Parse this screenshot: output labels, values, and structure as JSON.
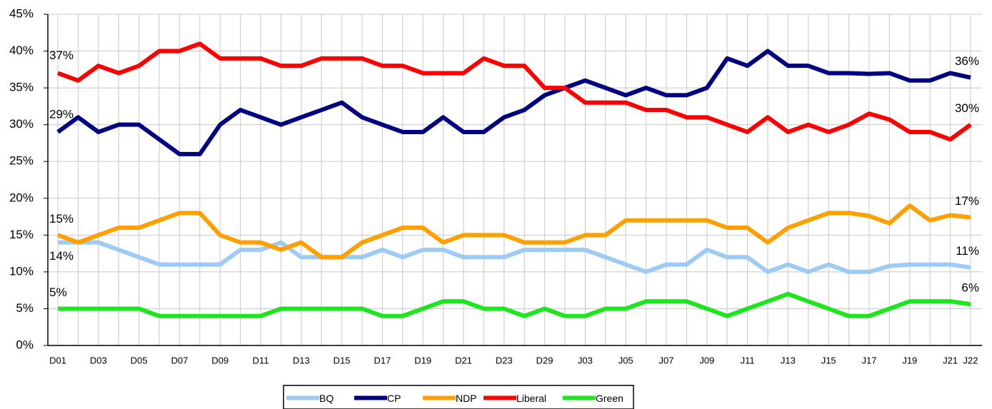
{
  "chart_data": {
    "type": "line",
    "categories": [
      "D01",
      null,
      "D03",
      null,
      "D05",
      null,
      "D07",
      null,
      "D09",
      null,
      "D11",
      null,
      "D13",
      null,
      "D15",
      null,
      "D17",
      null,
      "D19",
      null,
      "D21",
      null,
      "D23",
      null,
      "D29",
      null,
      "J03",
      null,
      "J05",
      null,
      "J07",
      null,
      "J09",
      null,
      "J11",
      null,
      "J13",
      null,
      "J15",
      null,
      "J17",
      null,
      "J19",
      null,
      "J21",
      "J22"
    ],
    "ylim": [
      0,
      45
    ],
    "yticks": [
      {
        "value": 0,
        "label": "0%"
      },
      {
        "value": 5,
        "label": "5%"
      },
      {
        "value": 10,
        "label": "10%"
      },
      {
        "value": 15,
        "label": "15%"
      },
      {
        "value": 20,
        "label": "20%"
      },
      {
        "value": 25,
        "label": "25%"
      },
      {
        "value": 30,
        "label": "30%"
      },
      {
        "value": 35,
        "label": "35%"
      },
      {
        "value": 40,
        "label": "40%"
      },
      {
        "value": 45,
        "label": "45%"
      }
    ],
    "grid": true,
    "legend": "bottom",
    "series": [
      {
        "name": "BQ",
        "color": "#9dcbf3",
        "values": [
          14,
          14,
          14,
          13,
          12,
          11,
          11,
          11,
          11,
          13,
          13,
          14,
          12,
          12,
          12,
          12,
          13,
          12,
          13,
          13,
          12,
          12,
          12,
          13,
          13,
          13,
          13,
          12,
          11,
          10,
          11,
          11,
          13,
          12,
          12,
          10,
          11,
          10,
          11,
          10,
          10,
          10.8,
          11,
          11,
          11,
          10.6
        ],
        "value_labels": [
          "14%",
          null,
          null,
          null,
          null,
          null,
          null,
          null,
          null,
          null,
          null,
          null,
          null,
          null,
          null,
          null,
          null,
          null,
          null,
          null,
          null,
          null,
          null,
          null,
          null,
          null,
          null,
          null,
          null,
          null,
          null,
          null,
          null,
          null,
          null,
          null,
          null,
          null,
          null,
          null,
          null,
          null,
          null,
          null,
          null,
          "11%"
        ]
      },
      {
        "name": "CP",
        "color": "#000080",
        "values": [
          29,
          31,
          29,
          30,
          30,
          28,
          26,
          26,
          30,
          32,
          31,
          30,
          31,
          32,
          33,
          31,
          30,
          29,
          29,
          31,
          29,
          29,
          31,
          32,
          34,
          35,
          36,
          35,
          34,
          35,
          34,
          34,
          35,
          39,
          38,
          40,
          38,
          38,
          37,
          37,
          36.9,
          37,
          36,
          36,
          37,
          36.4
        ],
        "value_labels": [
          "29%",
          null,
          null,
          null,
          null,
          null,
          null,
          null,
          null,
          null,
          null,
          null,
          null,
          null,
          null,
          null,
          null,
          null,
          null,
          null,
          null,
          null,
          null,
          null,
          null,
          null,
          null,
          null,
          null,
          null,
          null,
          null,
          null,
          null,
          null,
          null,
          null,
          null,
          null,
          null,
          null,
          null,
          null,
          null,
          null,
          "36%"
        ]
      },
      {
        "name": "NDP",
        "color": "#ffa000",
        "values": [
          15,
          14,
          15,
          16,
          16,
          17,
          18,
          18,
          15,
          14,
          14,
          13,
          14,
          12,
          12,
          14,
          15,
          16,
          16,
          14,
          15,
          15,
          15,
          14,
          14,
          14,
          15,
          15,
          17,
          17,
          17,
          17,
          17,
          16,
          16,
          14,
          16,
          17,
          18,
          18,
          17.6,
          16.6,
          19,
          17,
          17.7,
          17.4
        ],
        "value_labels": [
          "15%",
          null,
          null,
          null,
          null,
          null,
          null,
          null,
          null,
          null,
          null,
          null,
          null,
          null,
          null,
          null,
          null,
          null,
          null,
          null,
          null,
          null,
          null,
          null,
          null,
          null,
          null,
          null,
          null,
          null,
          null,
          null,
          null,
          null,
          null,
          null,
          null,
          null,
          null,
          null,
          null,
          null,
          null,
          null,
          null,
          "17%"
        ]
      },
      {
        "name": "Liberal",
        "color": "#ff0000",
        "values": [
          37,
          36,
          38,
          37,
          38,
          40,
          40,
          41,
          39,
          39,
          39,
          38,
          38,
          39,
          39,
          39,
          38,
          38,
          37,
          37,
          37,
          39,
          38,
          38,
          35,
          35,
          33,
          33,
          33,
          32,
          32,
          31,
          31,
          30,
          29,
          31,
          29,
          30,
          29,
          30,
          31.5,
          30.7,
          29,
          29,
          28,
          30
        ],
        "value_labels": [
          "37%",
          null,
          null,
          null,
          null,
          null,
          null,
          null,
          null,
          null,
          null,
          null,
          null,
          null,
          null,
          null,
          null,
          null,
          null,
          null,
          null,
          null,
          null,
          null,
          null,
          null,
          null,
          null,
          null,
          null,
          null,
          null,
          null,
          null,
          null,
          null,
          null,
          null,
          null,
          null,
          null,
          null,
          null,
          null,
          null,
          "30%"
        ]
      },
      {
        "name": "Green",
        "color": "#1ee61e",
        "values": [
          5,
          5,
          5,
          5,
          5,
          4,
          4,
          4,
          4,
          4,
          4,
          5,
          5,
          5,
          5,
          5,
          4,
          4,
          5,
          6,
          6,
          5,
          5,
          4,
          5,
          4,
          4,
          5,
          5,
          6,
          6,
          6,
          5,
          4,
          5,
          6,
          7,
          6,
          5,
          4,
          4,
          5,
          6,
          6,
          6,
          5.6
        ],
        "value_labels": [
          "5%",
          null,
          null,
          null,
          null,
          null,
          null,
          null,
          null,
          null,
          null,
          null,
          null,
          null,
          null,
          null,
          null,
          null,
          null,
          null,
          null,
          null,
          null,
          null,
          null,
          null,
          null,
          null,
          null,
          null,
          null,
          null,
          null,
          null,
          null,
          null,
          null,
          null,
          null,
          null,
          null,
          null,
          null,
          null,
          null,
          "6%"
        ]
      }
    ]
  }
}
